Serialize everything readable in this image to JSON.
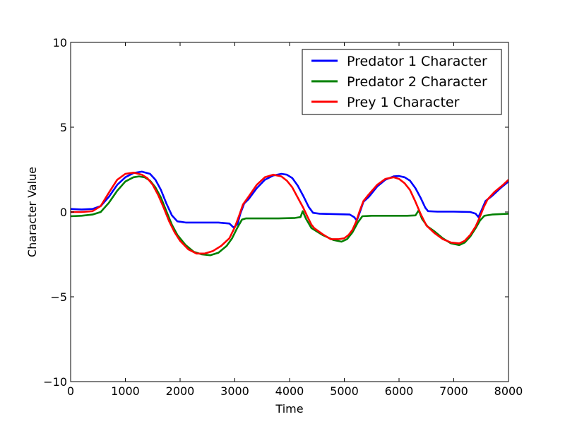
{
  "chart_data": {
    "type": "line",
    "title": "",
    "xlabel": "Time",
    "ylabel": "Character Value",
    "xlim": [
      0,
      8000
    ],
    "ylim": [
      -10,
      10
    ],
    "x_ticks": [
      0,
      1000,
      2000,
      3000,
      4000,
      5000,
      6000,
      7000,
      8000
    ],
    "y_ticks": [
      -10,
      -5,
      0,
      5,
      10
    ],
    "x_tick_labels": [
      "0",
      "1000",
      "2000",
      "3000",
      "4000",
      "5000",
      "6000",
      "7000",
      "8000"
    ],
    "y_tick_labels": [
      "−10",
      "−5",
      "0",
      "5",
      "10"
    ],
    "grid": false,
    "legend_position": "top-right",
    "series": [
      {
        "name": "Predator 1 Character",
        "color": "#0000ff",
        "points": [
          [
            0,
            0.18
          ],
          [
            200,
            0.15
          ],
          [
            400,
            0.18
          ],
          [
            550,
            0.35
          ],
          [
            700,
            0.9
          ],
          [
            850,
            1.6
          ],
          [
            1000,
            2.05
          ],
          [
            1150,
            2.3
          ],
          [
            1300,
            2.38
          ],
          [
            1450,
            2.25
          ],
          [
            1550,
            1.9
          ],
          [
            1650,
            1.3
          ],
          [
            1750,
            0.5
          ],
          [
            1850,
            -0.2
          ],
          [
            1950,
            -0.55
          ],
          [
            2100,
            -0.62
          ],
          [
            2400,
            -0.62
          ],
          [
            2700,
            -0.62
          ],
          [
            2900,
            -0.68
          ],
          [
            2980,
            -0.92
          ],
          [
            3050,
            -0.7
          ],
          [
            3100,
            -0.1
          ],
          [
            3170,
            0.5
          ],
          [
            3250,
            0.75
          ],
          [
            3400,
            1.4
          ],
          [
            3550,
            1.9
          ],
          [
            3700,
            2.15
          ],
          [
            3850,
            2.25
          ],
          [
            3950,
            2.2
          ],
          [
            4050,
            2.0
          ],
          [
            4150,
            1.55
          ],
          [
            4250,
            0.95
          ],
          [
            4350,
            0.3
          ],
          [
            4430,
            -0.05
          ],
          [
            4550,
            -0.1
          ],
          [
            4800,
            -0.12
          ],
          [
            5100,
            -0.15
          ],
          [
            5180,
            -0.3
          ],
          [
            5230,
            -0.5
          ],
          [
            5280,
            -0.05
          ],
          [
            5350,
            0.6
          ],
          [
            5450,
            0.9
          ],
          [
            5600,
            1.5
          ],
          [
            5750,
            1.9
          ],
          [
            5900,
            2.1
          ],
          [
            6000,
            2.12
          ],
          [
            6100,
            2.05
          ],
          [
            6200,
            1.85
          ],
          [
            6300,
            1.4
          ],
          [
            6400,
            0.8
          ],
          [
            6480,
            0.25
          ],
          [
            6530,
            0.05
          ],
          [
            6700,
            0.02
          ],
          [
            7000,
            0.02
          ],
          [
            7300,
            0.0
          ],
          [
            7400,
            -0.1
          ],
          [
            7450,
            -0.3
          ],
          [
            7500,
            0.05
          ],
          [
            7580,
            0.65
          ],
          [
            7700,
            0.95
          ],
          [
            7850,
            1.4
          ],
          [
            8000,
            1.8
          ]
        ]
      },
      {
        "name": "Predator 2 Character",
        "color": "#008000",
        "points": [
          [
            0,
            -0.25
          ],
          [
            200,
            -0.22
          ],
          [
            400,
            -0.15
          ],
          [
            550,
            0.0
          ],
          [
            700,
            0.55
          ],
          [
            850,
            1.25
          ],
          [
            1000,
            1.8
          ],
          [
            1150,
            2.05
          ],
          [
            1250,
            2.1
          ],
          [
            1350,
            2.05
          ],
          [
            1450,
            1.85
          ],
          [
            1550,
            1.45
          ],
          [
            1650,
            0.85
          ],
          [
            1750,
            0.05
          ],
          [
            1850,
            -0.75
          ],
          [
            1950,
            -1.35
          ],
          [
            2100,
            -1.95
          ],
          [
            2250,
            -2.35
          ],
          [
            2400,
            -2.5
          ],
          [
            2550,
            -2.55
          ],
          [
            2700,
            -2.4
          ],
          [
            2850,
            -2.0
          ],
          [
            2950,
            -1.55
          ],
          [
            3050,
            -0.9
          ],
          [
            3130,
            -0.45
          ],
          [
            3200,
            -0.38
          ],
          [
            3500,
            -0.38
          ],
          [
            3800,
            -0.38
          ],
          [
            4100,
            -0.35
          ],
          [
            4200,
            -0.3
          ],
          [
            4240,
            0.05
          ],
          [
            4300,
            -0.4
          ],
          [
            4400,
            -0.95
          ],
          [
            4600,
            -1.35
          ],
          [
            4800,
            -1.65
          ],
          [
            4950,
            -1.75
          ],
          [
            5050,
            -1.6
          ],
          [
            5150,
            -1.2
          ],
          [
            5250,
            -0.6
          ],
          [
            5330,
            -0.25
          ],
          [
            5500,
            -0.22
          ],
          [
            5800,
            -0.22
          ],
          [
            6150,
            -0.22
          ],
          [
            6300,
            -0.2
          ],
          [
            6360,
            0.1
          ],
          [
            6420,
            -0.4
          ],
          [
            6520,
            -0.85
          ],
          [
            6650,
            -1.15
          ],
          [
            6800,
            -1.55
          ],
          [
            6950,
            -1.85
          ],
          [
            7100,
            -1.95
          ],
          [
            7200,
            -1.8
          ],
          [
            7300,
            -1.45
          ],
          [
            7400,
            -0.95
          ],
          [
            7480,
            -0.5
          ],
          [
            7560,
            -0.22
          ],
          [
            7700,
            -0.15
          ],
          [
            8000,
            -0.1
          ]
        ]
      },
      {
        "name": "Prey 1 Character",
        "color": "#ff0000",
        "points": [
          [
            0,
            0.0
          ],
          [
            200,
            0.0
          ],
          [
            400,
            0.05
          ],
          [
            550,
            0.35
          ],
          [
            700,
            1.15
          ],
          [
            850,
            1.9
          ],
          [
            1000,
            2.25
          ],
          [
            1150,
            2.32
          ],
          [
            1300,
            2.2
          ],
          [
            1400,
            2.0
          ],
          [
            1500,
            1.6
          ],
          [
            1600,
            1.0
          ],
          [
            1700,
            0.25
          ],
          [
            1800,
            -0.55
          ],
          [
            1900,
            -1.2
          ],
          [
            2000,
            -1.7
          ],
          [
            2150,
            -2.2
          ],
          [
            2300,
            -2.45
          ],
          [
            2450,
            -2.45
          ],
          [
            2600,
            -2.3
          ],
          [
            2750,
            -2.0
          ],
          [
            2900,
            -1.55
          ],
          [
            3000,
            -0.9
          ],
          [
            3080,
            -0.2
          ],
          [
            3150,
            0.45
          ],
          [
            3250,
            0.9
          ],
          [
            3400,
            1.6
          ],
          [
            3550,
            2.05
          ],
          [
            3700,
            2.2
          ],
          [
            3850,
            2.1
          ],
          [
            3950,
            1.85
          ],
          [
            4050,
            1.45
          ],
          [
            4150,
            0.85
          ],
          [
            4250,
            0.25
          ],
          [
            4330,
            -0.3
          ],
          [
            4400,
            -0.75
          ],
          [
            4450,
            -0.95
          ],
          [
            4600,
            -1.3
          ],
          [
            4750,
            -1.6
          ],
          [
            4900,
            -1.6
          ],
          [
            5000,
            -1.55
          ],
          [
            5080,
            -1.35
          ],
          [
            5150,
            -1.05
          ],
          [
            5220,
            -0.55
          ],
          [
            5280,
            0.05
          ],
          [
            5350,
            0.65
          ],
          [
            5450,
            1.05
          ],
          [
            5600,
            1.6
          ],
          [
            5750,
            1.95
          ],
          [
            5900,
            2.05
          ],
          [
            6000,
            1.95
          ],
          [
            6100,
            1.7
          ],
          [
            6200,
            1.3
          ],
          [
            6300,
            0.6
          ],
          [
            6400,
            -0.15
          ],
          [
            6500,
            -0.8
          ],
          [
            6650,
            -1.25
          ],
          [
            6800,
            -1.6
          ],
          [
            6950,
            -1.8
          ],
          [
            7100,
            -1.85
          ],
          [
            7200,
            -1.7
          ],
          [
            7300,
            -1.35
          ],
          [
            7400,
            -0.85
          ],
          [
            7470,
            -0.35
          ],
          [
            7550,
            0.3
          ],
          [
            7620,
            0.75
          ],
          [
            7750,
            1.2
          ],
          [
            7900,
            1.6
          ],
          [
            8000,
            1.9
          ]
        ]
      }
    ]
  }
}
